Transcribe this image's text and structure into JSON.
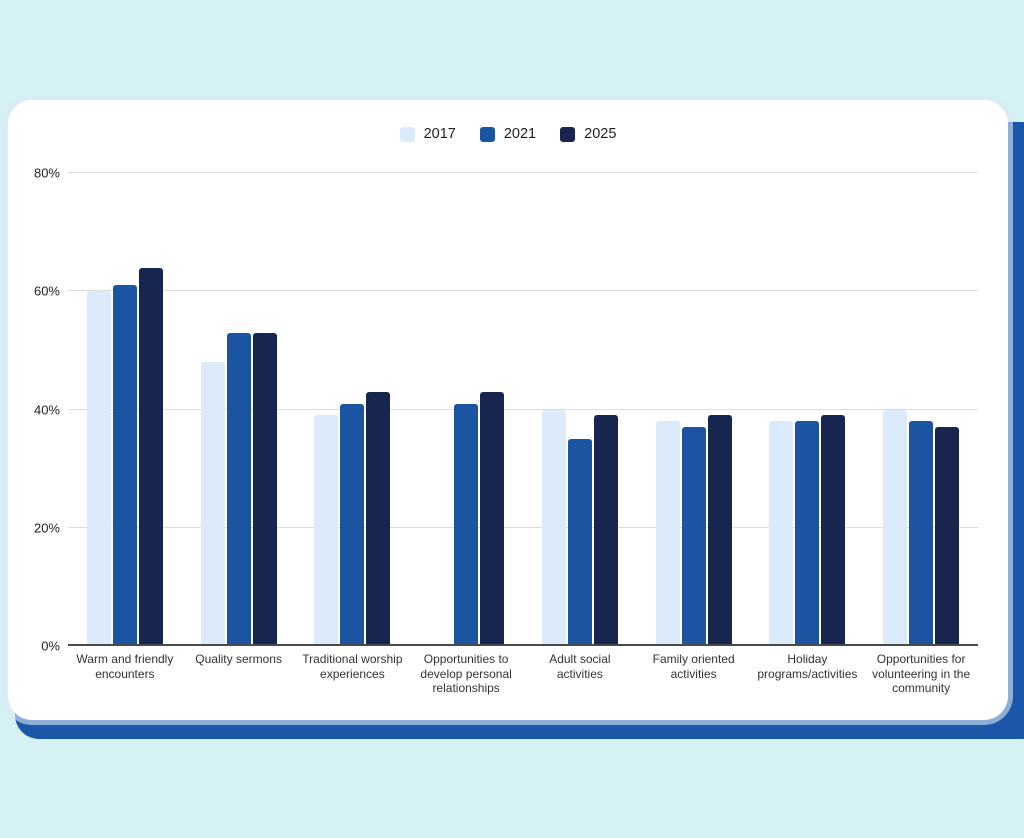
{
  "page": {
    "background_color": "#d5f1f3",
    "card_color": "#ffffff",
    "backdrop_color": "#1b57a8"
  },
  "chart_data": {
    "type": "bar",
    "title": "",
    "xlabel": "",
    "ylabel": "",
    "ylim": [
      0,
      80
    ],
    "grid": true,
    "legend_position": "top",
    "yticks": [
      {
        "label": "0%",
        "value": 0
      },
      {
        "label": "20%",
        "value": 20
      },
      {
        "label": "40%",
        "value": 40
      },
      {
        "label": "60%",
        "value": 60
      },
      {
        "label": "80%",
        "value": 80
      }
    ],
    "categories": [
      "Warm and friendly encounters",
      "Quality sermons",
      "Traditional worship experiences",
      "Opportunities to develop personal relationships",
      "Adult social activities",
      "Family oriented activities",
      "Holiday programs/activities",
      "Opportunities for volunteering in the community"
    ],
    "series": [
      {
        "name": "2017",
        "color": "#dcebfc",
        "values": [
          60,
          48,
          39,
          null,
          40,
          38,
          38,
          40
        ]
      },
      {
        "name": "2021",
        "color": "#1b55a2",
        "values": [
          61,
          53,
          41,
          41,
          35,
          37,
          38,
          38
        ]
      },
      {
        "name": "2025",
        "color": "#17254f",
        "values": [
          64,
          53,
          43,
          43,
          39,
          39,
          39,
          37
        ]
      }
    ]
  }
}
